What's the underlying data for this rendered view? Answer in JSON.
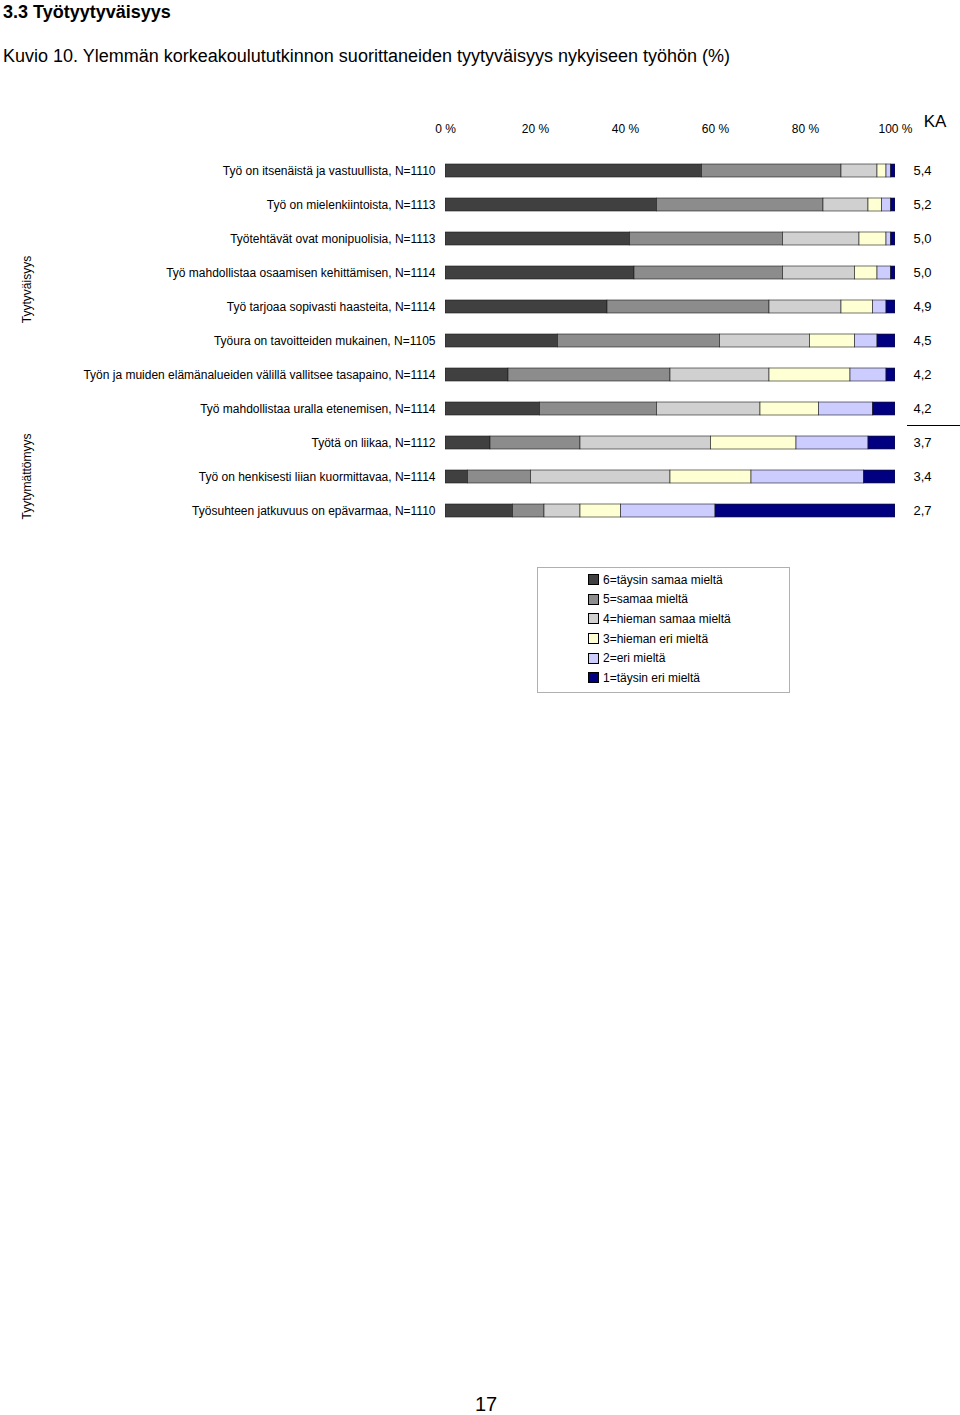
{
  "section_heading": "3.3 Työtyytyväisyys",
  "page_number": "17",
  "chart_data": {
    "type": "bar",
    "orientation": "horizontal",
    "stacked": true,
    "grid": false,
    "title": "Kuvio 10. Ylemmän korkeakoulututkinnon suorittaneiden tyytyväisyys nykyiseen työhön (%)",
    "categories": [
      "Työ on itsenäistä ja vastuullista, N=1110",
      "Työ on mielenkiintoista, N=1113",
      "Työtehtävät ovat monipuolisia, N=1113",
      "Työ mahdollistaa osaamisen kehittämisen, N=1114",
      "Työ tarjoaa sopivasti haasteita, N=1114",
      "Työura on tavoitteiden mukainen, N=1105",
      "Työn ja muiden elämänalueiden välillä vallitsee tasapaino, N=1114",
      "Työ mahdollistaa uralla etenemisen, N=1114",
      "Työtä on liikaa, N=1112",
      "Työ on henkisesti liian kuormittavaa, N=1114",
      "Työsuhteen jatkuvuus on epävarmaa, N=1110"
    ],
    "category_groups": [
      "Tyytyväisyys",
      "Tyytyväisyys",
      "Tyytyväisyys",
      "Tyytyväisyys",
      "Tyytyväisyys",
      "Tyytyväisyys",
      "Tyytyväisyys",
      "Tyytyväisyys",
      "Tyytymättömyys",
      "Tyytymättömyys",
      "Tyytymättömyys"
    ],
    "series": [
      {
        "name": "6=täysin samaa mieltä",
        "color": "#404040",
        "values": [
          57,
          47,
          41,
          42,
          36,
          25,
          14,
          21,
          10,
          5,
          15
        ]
      },
      {
        "name": "5=samaa mieltä",
        "color": "#8c8c8c",
        "values": [
          31,
          37,
          34,
          33,
          36,
          36,
          36,
          26,
          20,
          14,
          7
        ]
      },
      {
        "name": "4=hieman samaa mieltä",
        "color": "#d0d0d0",
        "values": [
          8,
          10,
          17,
          16,
          16,
          20,
          22,
          23,
          29,
          31,
          8
        ]
      },
      {
        "name": "3=hieman eri mieltä",
        "color": "#ffffd4",
        "values": [
          2,
          3,
          6,
          5,
          7,
          10,
          18,
          13,
          19,
          18,
          9
        ]
      },
      {
        "name": "2=eri mieltä",
        "color": "#ccccff",
        "values": [
          1,
          2,
          1,
          3,
          3,
          5,
          8,
          12,
          16,
          25,
          21
        ]
      },
      {
        "name": "1=täysin eri mieltä",
        "color": "#000080",
        "values": [
          1,
          1,
          1,
          1,
          2,
          4,
          2,
          5,
          6,
          7,
          40
        ]
      }
    ],
    "xlim": [
      0,
      100
    ],
    "xticks": [
      {
        "value": 0,
        "label": "0 %"
      },
      {
        "value": 20,
        "label": "20 %"
      },
      {
        "value": 40,
        "label": "40 %"
      },
      {
        "value": 60,
        "label": "60 %"
      },
      {
        "value": 80,
        "label": "80 %"
      },
      {
        "value": 100,
        "label": "100 %"
      }
    ],
    "means_title": "KA",
    "means": [
      5.4,
      5.2,
      5.0,
      5.0,
      4.9,
      4.5,
      4.2,
      4.2,
      3.7,
      3.4,
      2.7
    ],
    "means_labels": [
      "5,4",
      "5,2",
      "5,0",
      "5,0",
      "4,9",
      "4,5",
      "4,2",
      "4,2",
      "3,7",
      "3,4",
      "2,7"
    ]
  }
}
